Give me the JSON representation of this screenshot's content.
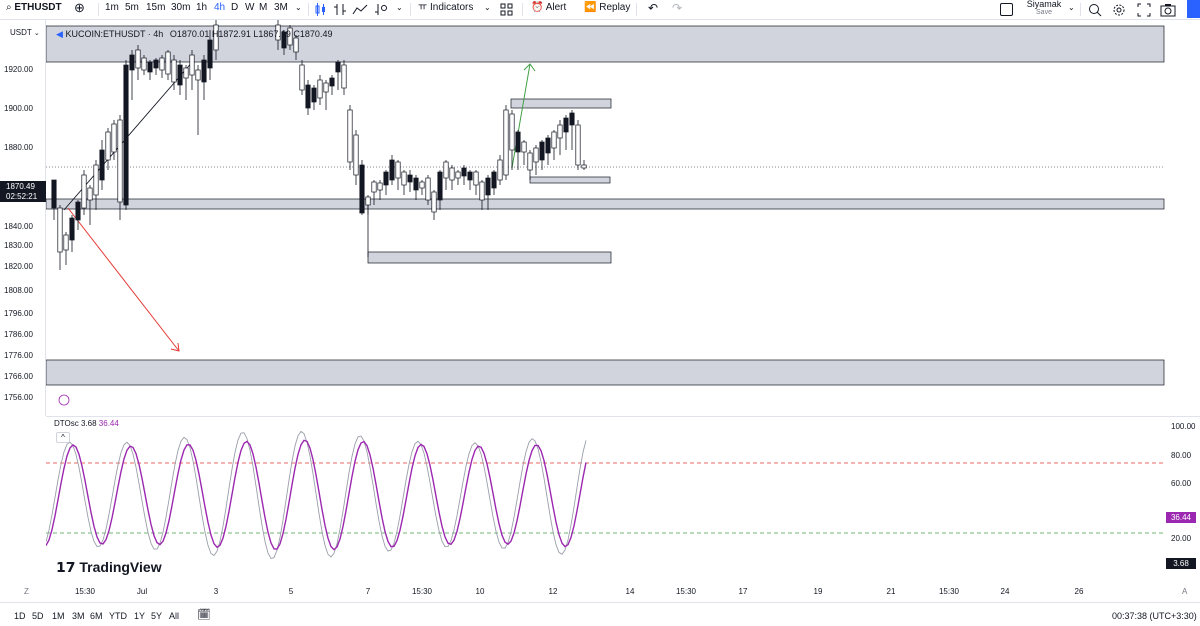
{
  "toolbar": {
    "symbol": "ETHUSDT",
    "intervals": [
      "1m",
      "5m",
      "15m",
      "30m",
      "1h",
      "4h",
      "D",
      "W",
      "M",
      "3M"
    ],
    "active_interval": "4h",
    "indicators_label": "Indicators",
    "alert_label": "Alert",
    "replay_label": "Replay",
    "user_name": "Siyamak",
    "save_label": "Save",
    "icons": [
      "search-icon",
      "add-symbol-icon",
      "candles-icon",
      "compare-icon",
      "line-icon",
      "chevron-down-icon",
      "indicators-icon",
      "templates-icon",
      "alert-icon",
      "replay-icon",
      "undo-icon",
      "redo-icon",
      "checkbox-icon",
      "quick-search-icon",
      "settings-icon",
      "fullscreen-icon",
      "camera-icon"
    ]
  },
  "legend": {
    "symbol_full": "KUCOIN:ETHUSDT · 4h",
    "ohlc": "O1870.01 H1872.91 L1867.19 C1870.49",
    "currency": "USDT"
  },
  "price_scale": {
    "ticks": [
      "1920.00",
      "1900.00",
      "1880.00",
      "1860.00",
      "1840.00",
      "1830.00",
      "1820.00",
      "1808.00",
      "1796.00",
      "1786.00",
      "1776.00",
      "1766.00",
      "1756.00"
    ],
    "current_price": "1870.49",
    "countdown": "02:52:21"
  },
  "oscillator": {
    "name": "DTOsc",
    "value_1": "3.68",
    "value_2": "36.44",
    "ticks": [
      "100.00",
      "80.00",
      "60.00",
      "20.00"
    ],
    "tag_1": "36.44",
    "tag_2": "3.68",
    "colors": {
      "fast": "#9a9ea8",
      "slow": "#9c27b0",
      "upper": "#e53935",
      "lower": "#43a047"
    }
  },
  "branding": {
    "logo_text": "TradingView"
  },
  "time_scale": {
    "ticks": [
      "15:30",
      "Jul",
      "3",
      "5",
      "7",
      "15:30",
      "10",
      "12",
      "14",
      "15:30",
      "17",
      "19",
      "21",
      "15:30",
      "24",
      "26"
    ]
  },
  "bottom_bar": {
    "ranges": [
      "1D",
      "5D",
      "1M",
      "3M",
      "6M",
      "YTD",
      "1Y",
      "5Y",
      "All"
    ],
    "clock": "00:37:38 (UTC+3:30)"
  },
  "colors": {
    "up": "#ffffff",
    "down": "#131722",
    "zone": "#d1d4dc",
    "arrow_up": "#43a047",
    "arrow_down": "#e53935",
    "accent": "#2962ff"
  }
}
